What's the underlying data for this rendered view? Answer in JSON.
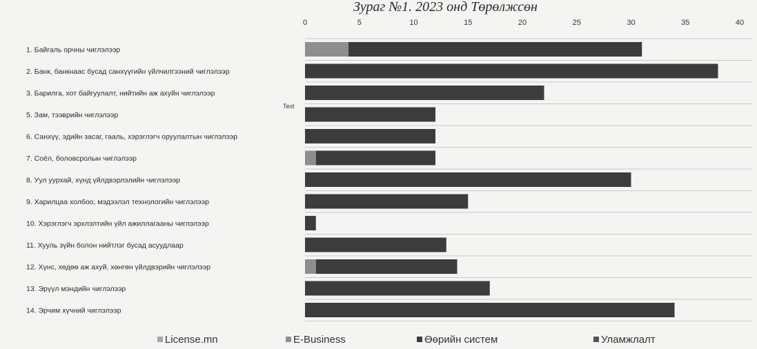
{
  "caption": "Зураг №1. 2023 онд Төрөлжсөн",
  "chart_data": {
    "type": "bar",
    "orientation": "horizontal",
    "stacked": true,
    "xlim": [
      0,
      40
    ],
    "x_ticks": [
      0,
      5,
      10,
      15,
      20,
      25,
      30,
      35,
      40
    ],
    "grid": true,
    "legend_position": "bottom",
    "annotation": "Text",
    "categories": [
      "1. Байгаль орчны чиглэлээр",
      "2. Банк, банкнаас бусад санхүүгийн үйлчилгээний чиглэлээр",
      "3. Барилга, хот байгуулалт, нийтийн аж ахуйн чиглэлээр",
      "5. Зам, тээврийн чиглэлээр",
      "6. Санхүү, эдийн засаг, гааль, хэрэглэгч оруулалтын чиглэлээр",
      "7. Соёл, боловсролын чиглэлээр",
      "8. Уул уурхай, хүнд үйлдвэрлэлийн чиглэлээр",
      "9. Харилцаа холбоо, мэдээлэл технологийн чиглэлээр",
      "10. Хэрэглэгч эрхлэлтийн үйл ажиллагааны чиглэлээр",
      "11. Хууль зүйн болон нийтлэг бусад асуудлаар",
      "12. Хүнс, хөдөө аж ахуй, хөнгөн үйлдвэрийн чиглэлээр",
      "13. Эрүүл мэндийн чиглэлээр",
      "14. Эрчим хүчний чиглэлээр"
    ],
    "series": [
      {
        "name": "License.mn",
        "color": "#a7a7a7",
        "values": [
          0,
          0,
          0,
          0,
          0,
          0,
          0,
          0,
          0,
          0,
          0,
          0,
          0
        ]
      },
      {
        "name": "E-Business",
        "color": "#8e8e8e",
        "values": [
          4,
          0,
          0,
          0,
          0,
          1,
          0,
          0,
          0,
          0,
          1,
          0,
          0
        ]
      },
      {
        "name": "Өөрийн систем",
        "color": "#3c3c3c",
        "values": [
          27,
          38,
          22,
          12,
          12,
          11,
          30,
          15,
          1,
          13,
          13,
          17,
          34
        ]
      },
      {
        "name": "Уламжлалт",
        "color": "#555555",
        "values": [
          0,
          0,
          0,
          0,
          0,
          0,
          0,
          0,
          0,
          0,
          0,
          0,
          0
        ]
      }
    ]
  }
}
